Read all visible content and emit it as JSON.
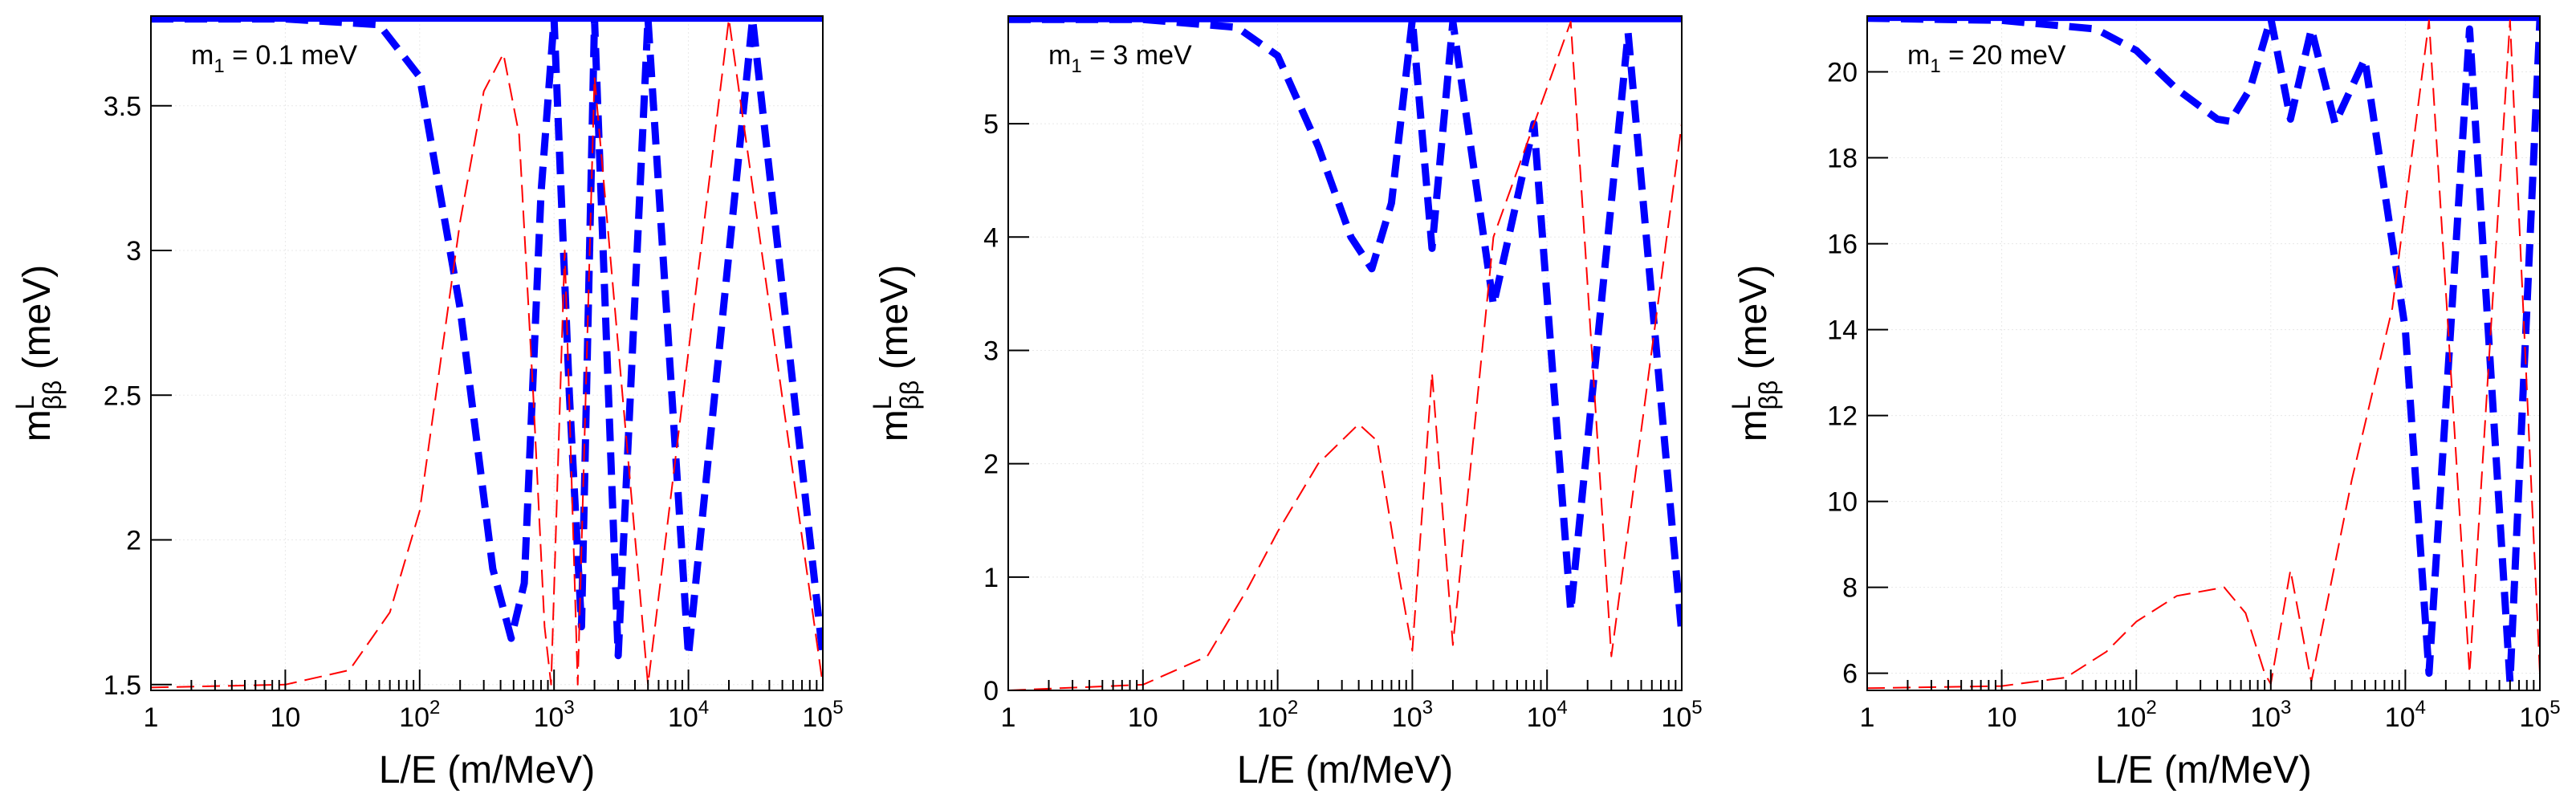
{
  "chart_data": [
    {
      "type": "line",
      "annotation_main": "m",
      "annotation_sub": "1",
      "annotation_rest": " = 0.1 meV",
      "xlabel": "L/E (m/MeV)",
      "ylabel_main": "m",
      "ylabel_sup": "L",
      "ylabel_sub": "ββ",
      "ylabel_rest": " (meV)",
      "xscale": "log",
      "xlim": [
        1,
        100000
      ],
      "ylim": [
        1.48,
        3.81
      ],
      "x_ticks": [
        {
          "value": 1,
          "base": "1",
          "exp": ""
        },
        {
          "value": 10,
          "base": "10",
          "exp": ""
        },
        {
          "value": 100,
          "base": "10",
          "exp": "2"
        },
        {
          "value": 1000,
          "base": "10",
          "exp": "3"
        },
        {
          "value": 10000,
          "base": "10",
          "exp": "4"
        },
        {
          "value": 100000,
          "base": "10",
          "exp": "5"
        }
      ],
      "y_ticks": [
        {
          "value": 1.5,
          "label": "1.5"
        },
        {
          "value": 2,
          "label": "2"
        },
        {
          "value": 2.5,
          "label": "2.5"
        },
        {
          "value": 3,
          "label": "3"
        },
        {
          "value": 3.5,
          "label": "3.5"
        }
      ],
      "series": [
        {
          "name": "upper bound",
          "color": "#0000ff",
          "style": "solid",
          "value": 3.8
        },
        {
          "name": "blue dashed envelope",
          "color": "#0000ff",
          "style": "dashed",
          "points": [
            [
              1,
              3.8
            ],
            [
              10,
              3.8
            ],
            [
              50,
              3.78
            ],
            [
              100,
              3.6
            ],
            [
              200,
              2.8
            ],
            [
              350,
              1.9
            ],
            [
              480,
              1.66
            ],
            [
              600,
              1.85
            ],
            [
              800,
              3.2
            ],
            [
              1000,
              3.8
            ],
            [
              1300,
              2.5
            ],
            [
              1600,
              1.7
            ],
            [
              2000,
              3.8
            ],
            [
              3000,
              1.6
            ],
            [
              5000,
              3.8
            ],
            [
              10000,
              1.6
            ],
            [
              30000,
              3.8
            ],
            [
              100000,
              1.6
            ]
          ]
        },
        {
          "name": "red dashed envelope",
          "color": "#ff0000",
          "style": "dashed",
          "points": [
            [
              1,
              1.49
            ],
            [
              10,
              1.5
            ],
            [
              30,
              1.55
            ],
            [
              60,
              1.75
            ],
            [
              100,
              2.1
            ],
            [
              200,
              3.1
            ],
            [
              300,
              3.55
            ],
            [
              420,
              3.68
            ],
            [
              550,
              3.4
            ],
            [
              700,
              2.5
            ],
            [
              850,
              1.7
            ],
            [
              950,
              1.5
            ],
            [
              1200,
              3.0
            ],
            [
              1500,
              1.5
            ],
            [
              2000,
              3.6
            ],
            [
              5000,
              1.5
            ],
            [
              20000,
              3.8
            ],
            [
              100000,
              1.5
            ]
          ]
        }
      ]
    },
    {
      "type": "line",
      "annotation_main": "m",
      "annotation_sub": "1",
      "annotation_rest": " = 3 meV",
      "xlabel": "L/E (m/MeV)",
      "ylabel_main": "m",
      "ylabel_sup": "L",
      "ylabel_sub": "ββ",
      "ylabel_rest": " (meV)",
      "xscale": "log",
      "xlim": [
        1,
        100000
      ],
      "ylim": [
        0,
        5.95
      ],
      "x_ticks": [
        {
          "value": 1,
          "base": "1",
          "exp": ""
        },
        {
          "value": 10,
          "base": "10",
          "exp": ""
        },
        {
          "value": 100,
          "base": "10",
          "exp": "2"
        },
        {
          "value": 1000,
          "base": "10",
          "exp": "3"
        },
        {
          "value": 10000,
          "base": "10",
          "exp": "4"
        },
        {
          "value": 100000,
          "base": "10",
          "exp": "5"
        }
      ],
      "y_ticks": [
        {
          "value": 0,
          "label": "0"
        },
        {
          "value": 1,
          "label": "1"
        },
        {
          "value": 2,
          "label": "2"
        },
        {
          "value": 3,
          "label": "3"
        },
        {
          "value": 4,
          "label": "4"
        },
        {
          "value": 5,
          "label": "5"
        }
      ],
      "series": [
        {
          "name": "upper bound",
          "color": "#0000ff",
          "style": "solid",
          "value": 5.92
        },
        {
          "name": "blue dashed envelope",
          "color": "#0000ff",
          "style": "dashed",
          "points": [
            [
              1,
              5.92
            ],
            [
              10,
              5.92
            ],
            [
              50,
              5.85
            ],
            [
              100,
              5.6
            ],
            [
              200,
              4.8
            ],
            [
              350,
              4.0
            ],
            [
              500,
              3.72
            ],
            [
              700,
              4.3
            ],
            [
              1000,
              5.92
            ],
            [
              1400,
              3.9
            ],
            [
              2000,
              5.9
            ],
            [
              4000,
              3.4
            ],
            [
              8000,
              5.0
            ],
            [
              15000,
              0.7
            ],
            [
              40000,
              5.8
            ],
            [
              100000,
              0.5
            ]
          ]
        },
        {
          "name": "red dashed envelope",
          "color": "#ff0000",
          "style": "dashed",
          "points": [
            [
              1,
              0
            ],
            [
              10,
              0.05
            ],
            [
              30,
              0.3
            ],
            [
              60,
              0.9
            ],
            [
              100,
              1.4
            ],
            [
              200,
              2.0
            ],
            [
              400,
              2.35
            ],
            [
              550,
              2.2
            ],
            [
              800,
              1.0
            ],
            [
              1000,
              0.35
            ],
            [
              1400,
              2.8
            ],
            [
              2000,
              0.4
            ],
            [
              4000,
              4.0
            ],
            [
              15000,
              5.9
            ],
            [
              30000,
              0.3
            ],
            [
              100000,
              5.0
            ]
          ]
        }
      ]
    },
    {
      "type": "line",
      "annotation_main": "m",
      "annotation_sub": "1",
      "annotation_rest": " = 20 meV",
      "xlabel": "L/E (m/MeV)",
      "ylabel_main": "m",
      "ylabel_sup": "L",
      "ylabel_sub": "ββ",
      "ylabel_rest": " (meV)",
      "xscale": "log",
      "xlim": [
        1,
        100000
      ],
      "ylim": [
        5.6,
        21.3
      ],
      "x_ticks": [
        {
          "value": 1,
          "base": "1",
          "exp": ""
        },
        {
          "value": 10,
          "base": "10",
          "exp": ""
        },
        {
          "value": 100,
          "base": "10",
          "exp": "2"
        },
        {
          "value": 1000,
          "base": "10",
          "exp": "3"
        },
        {
          "value": 10000,
          "base": "10",
          "exp": "4"
        },
        {
          "value": 100000,
          "base": "10",
          "exp": "5"
        }
      ],
      "y_ticks": [
        {
          "value": 6,
          "label": "6"
        },
        {
          "value": 8,
          "label": "8"
        },
        {
          "value": 10,
          "label": "10"
        },
        {
          "value": 12,
          "label": "12"
        },
        {
          "value": 14,
          "label": "14"
        },
        {
          "value": 16,
          "label": "16"
        },
        {
          "value": 18,
          "label": "18"
        },
        {
          "value": 20,
          "label": "20"
        }
      ],
      "series": [
        {
          "name": "upper bound",
          "color": "#0000ff",
          "style": "solid",
          "value": 21.25
        },
        {
          "name": "blue dashed envelope",
          "color": "#0000ff",
          "style": "dashed",
          "points": [
            [
              1,
              21.25
            ],
            [
              10,
              21.2
            ],
            [
              50,
              21.0
            ],
            [
              100,
              20.5
            ],
            [
              200,
              19.6
            ],
            [
              400,
              18.9
            ],
            [
              500,
              18.85
            ],
            [
              700,
              19.6
            ],
            [
              1000,
              21.25
            ],
            [
              1400,
              18.9
            ],
            [
              2000,
              21.0
            ],
            [
              3000,
              18.8
            ],
            [
              5000,
              20.3
            ],
            [
              10000,
              14.0
            ],
            [
              15000,
              6.0
            ],
            [
              30000,
              21.0
            ],
            [
              60000,
              5.8
            ],
            [
              100000,
              21.2
            ]
          ]
        },
        {
          "name": "red dashed envelope",
          "color": "#ff0000",
          "style": "dashed",
          "points": [
            [
              1,
              5.65
            ],
            [
              10,
              5.7
            ],
            [
              30,
              5.9
            ],
            [
              60,
              6.5
            ],
            [
              100,
              7.2
            ],
            [
              200,
              7.8
            ],
            [
              450,
              8.0
            ],
            [
              650,
              7.4
            ],
            [
              900,
              6.0
            ],
            [
              1000,
              5.75
            ],
            [
              1400,
              8.4
            ],
            [
              2000,
              5.8
            ],
            [
              4000,
              10.5
            ],
            [
              8000,
              14.5
            ],
            [
              15000,
              21.2
            ],
            [
              30000,
              6.0
            ],
            [
              60000,
              21.2
            ],
            [
              100000,
              6.0
            ]
          ]
        }
      ]
    }
  ]
}
